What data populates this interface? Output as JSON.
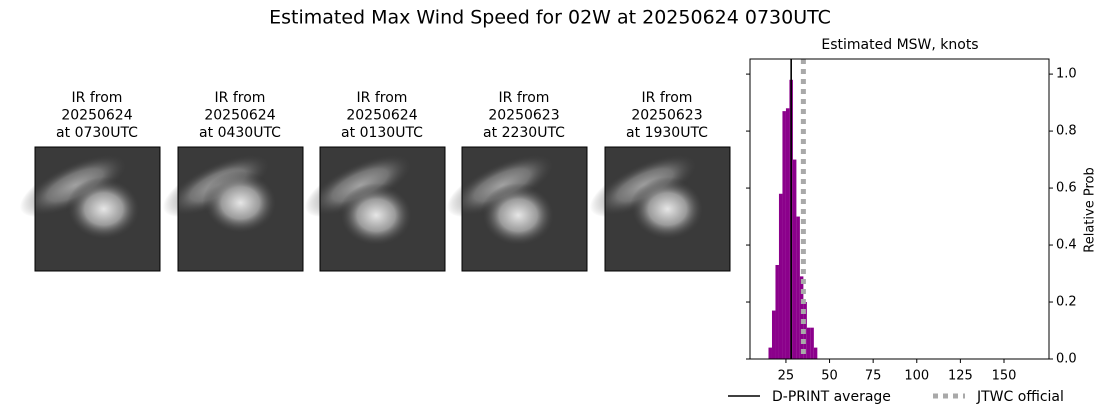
{
  "chart_data": {
    "type": "histogram",
    "title": "Estimated Max Wind Speed for 02W at 20250624 0730UTC",
    "subtitle": "Estimated MSW, knots",
    "ylabel": "Relative Prob",
    "bins": [
      15,
      17,
      19,
      21,
      23,
      25,
      27,
      29,
      31,
      33,
      35,
      37,
      39,
      41,
      43
    ],
    "values": [
      0.04,
      0.17,
      0.33,
      0.58,
      0.87,
      0.88,
      0.98,
      0.7,
      0.5,
      0.29,
      0.2,
      0.11,
      0.11,
      0.04
    ],
    "color": "#8b008b",
    "xlim": [
      4.4,
      175.8
    ],
    "ylim": [
      0,
      1.053
    ],
    "xticks": [
      25,
      50,
      75,
      100,
      125,
      150
    ],
    "yticks": [
      {
        "value": 0,
        "label": "0.0"
      },
      {
        "value": 0.2,
        "label": "0.2"
      },
      {
        "value": 0.4,
        "label": "0.4"
      },
      {
        "value": 0.6,
        "label": "0.6"
      },
      {
        "value": 0.8,
        "label": "0.8"
      },
      {
        "value": 1.0,
        "label": "1.0"
      }
    ],
    "lines": [
      {
        "name": "D-PRINT average",
        "x": 28,
        "color": "#000000",
        "style": "solid"
      },
      {
        "name": "JTWC official",
        "x": 35,
        "color": "#a9a9a9",
        "style": "dotted"
      }
    ]
  },
  "panels": [
    {
      "lines": [
        "IR from",
        "20250624",
        "at 0730UTC"
      ]
    },
    {
      "lines": [
        "IR from",
        "20250624",
        "at 0430UTC"
      ]
    },
    {
      "lines": [
        "IR from",
        "20250624",
        "at 0130UTC"
      ]
    },
    {
      "lines": [
        "IR from",
        "20250623",
        "at 2230UTC"
      ]
    },
    {
      "lines": [
        "IR from",
        "20250623",
        "at 1930UTC"
      ]
    }
  ]
}
